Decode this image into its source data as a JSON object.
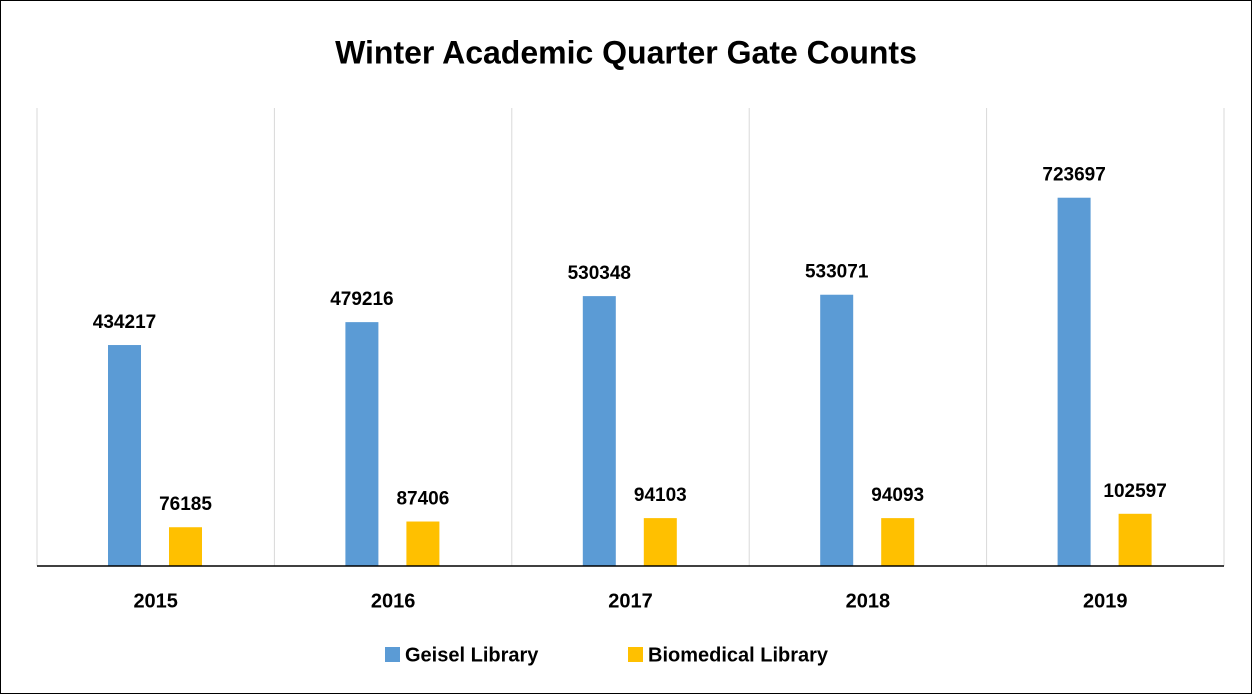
{
  "chart_data": {
    "type": "bar",
    "title": "Winter Academic Quarter Gate Counts",
    "categories": [
      "2015",
      "2016",
      "2017",
      "2018",
      "2019"
    ],
    "series": [
      {
        "name": "Geisel Library",
        "color": "#5b9bd5",
        "values": [
          434217,
          479216,
          530348,
          533071,
          723697
        ]
      },
      {
        "name": "Biomedical Library",
        "color": "#ffc000",
        "values": [
          76185,
          87406,
          94103,
          94093,
          102597
        ]
      }
    ],
    "ylim": [
      0,
      900000
    ],
    "grid": true,
    "legend": "bottom"
  }
}
